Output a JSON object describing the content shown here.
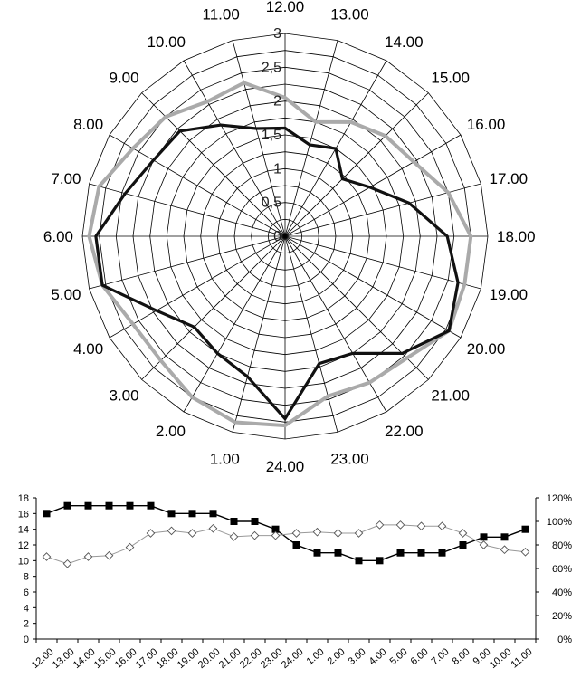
{
  "chart_data": [
    {
      "type": "radar",
      "direction": "clockwise",
      "start_category": "12.00",
      "categories": [
        "12.00",
        "13.00",
        "14.00",
        "15.00",
        "16.00",
        "17.00",
        "18.00",
        "19.00",
        "20.00",
        "21.00",
        "22.00",
        "23.00",
        "24.00",
        "1.00",
        "2.00",
        "3.00",
        "4.00",
        "5.00",
        "6.00",
        "7.00",
        "8.00",
        "9.00",
        "10.00",
        "11.00"
      ],
      "r_ticks": [
        "0",
        "0,5",
        "1",
        "1,5",
        "2",
        "2,5",
        "3"
      ],
      "rlim": [
        0,
        3
      ],
      "series": [
        {
          "color": "#111111",
          "values": [
            1.6,
            1.4,
            1.5,
            1.2,
            1.45,
            1.9,
            2.4,
            2.65,
            2.8,
            2.45,
            2.0,
            1.95,
            2.7,
            2.15,
            2.0,
            1.9,
            2.2,
            2.8,
            2.8,
            2.45,
            2.25,
            2.2,
            1.9,
            1.65
          ]
        },
        {
          "color": "#aaaaaa",
          "values": [
            2.05,
            1.75,
            1.95,
            2.1,
            2.2,
            2.5,
            2.75,
            2.75,
            2.8,
            2.55,
            2.5,
            2.45,
            2.8,
            2.85,
            2.75,
            2.6,
            2.6,
            2.8,
            2.9,
            2.85,
            2.6,
            2.5,
            2.3,
            2.35
          ]
        }
      ]
    },
    {
      "type": "line",
      "categories": [
        "12.00",
        "13.00",
        "14.00",
        "15.00",
        "16.00",
        "17.00",
        "18.00",
        "19.00",
        "20.00",
        "21.00",
        "22.00",
        "23.00",
        "24.00",
        "1.00",
        "2.00",
        "3.00",
        "4.00",
        "5.00",
        "6.00",
        "7.00",
        "8.00",
        "9.00",
        "10.00",
        "11.00"
      ],
      "y_left": {
        "ylim": [
          0,
          18
        ],
        "ticks": [
          "0",
          "2",
          "4",
          "6",
          "8",
          "10",
          "12",
          "14",
          "16",
          "18"
        ]
      },
      "y_right": {
        "ylim": [
          0,
          120
        ],
        "ticks": [
          "0%",
          "20%",
          "40%",
          "60%",
          "80%",
          "100%",
          "120%"
        ]
      },
      "series": [
        {
          "axis": "left",
          "marker": "filled-square",
          "color": "#000000",
          "values": [
            16,
            17,
            17,
            17,
            17,
            17,
            16,
            16,
            16,
            15,
            15,
            14,
            12,
            11,
            11,
            10,
            10,
            11,
            11,
            11,
            12,
            13,
            13,
            14
          ]
        },
        {
          "axis": "right",
          "marker": "open-diamond",
          "color": "#999999",
          "values": [
            70,
            64,
            70,
            71,
            78,
            90,
            92,
            90,
            94,
            87,
            88,
            88,
            90,
            91,
            90,
            90,
            97,
            97,
            96,
            96,
            90,
            80,
            76,
            74
          ]
        }
      ]
    }
  ]
}
